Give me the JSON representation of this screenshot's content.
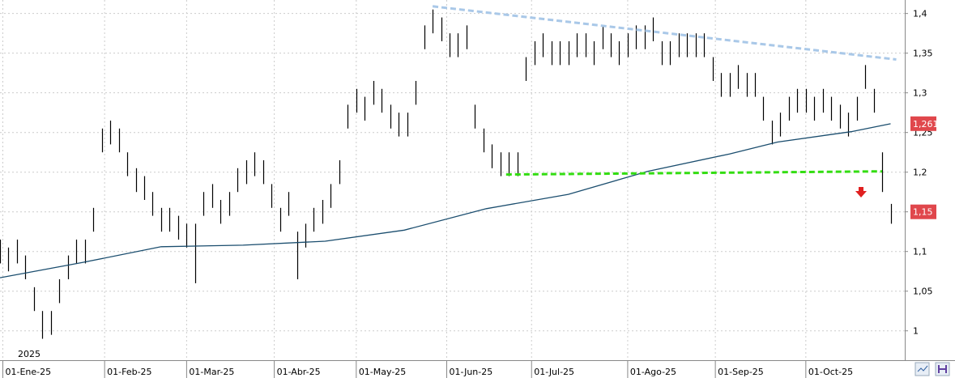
{
  "chart_data": {
    "type": "ohlc",
    "annotation": "2025",
    "bars": {
      "color": "#000000",
      "x": [
        0,
        3,
        6,
        9,
        12,
        15,
        18,
        21,
        24,
        27,
        30,
        33,
        36,
        39,
        42,
        45,
        48,
        51,
        54,
        57,
        60,
        63,
        66,
        69,
        72,
        75,
        78,
        81,
        84,
        87,
        90,
        93,
        96,
        99,
        102,
        105,
        108,
        111,
        114,
        117,
        120,
        123,
        126,
        129,
        132,
        135,
        138,
        141,
        144,
        147,
        150,
        153,
        156,
        159,
        162,
        165,
        168,
        171,
        174,
        177,
        180,
        183,
        186,
        189,
        192,
        195,
        198,
        201,
        204,
        207,
        210,
        213,
        216,
        219,
        222,
        225,
        228,
        231,
        234,
        237,
        240,
        243,
        246,
        249,
        252,
        255,
        258,
        261,
        264,
        267,
        270,
        273,
        276,
        279,
        282,
        285,
        288,
        291,
        294,
        297,
        300,
        303,
        306,
        309,
        312,
        315
      ],
      "high": [
        1.115,
        1.105,
        1.115,
        1.095,
        1.055,
        1.025,
        1.025,
        1.065,
        1.095,
        1.115,
        1.115,
        1.155,
        1.255,
        1.265,
        1.255,
        1.225,
        1.205,
        1.195,
        1.175,
        1.155,
        1.155,
        1.145,
        1.135,
        1.135,
        1.175,
        1.185,
        1.165,
        1.175,
        1.205,
        1.215,
        1.225,
        1.215,
        1.185,
        1.155,
        1.175,
        1.125,
        1.135,
        1.155,
        1.165,
        1.185,
        1.215,
        1.285,
        1.305,
        1.295,
        1.315,
        1.305,
        1.285,
        1.275,
        1.275,
        1.315,
        1.385,
        1.405,
        1.395,
        1.375,
        1.375,
        1.385,
        1.285,
        1.255,
        1.235,
        1.225,
        1.225,
        1.225,
        1.345,
        1.365,
        1.375,
        1.365,
        1.365,
        1.365,
        1.375,
        1.375,
        1.365,
        1.385,
        1.375,
        1.365,
        1.375,
        1.385,
        1.385,
        1.395,
        1.365,
        1.365,
        1.375,
        1.375,
        1.375,
        1.375,
        1.345,
        1.325,
        1.325,
        1.335,
        1.325,
        1.325,
        1.295,
        1.265,
        1.275,
        1.295,
        1.305,
        1.305,
        1.295,
        1.305,
        1.295,
        1.285,
        1.275,
        1.295,
        1.335,
        1.305,
        1.225,
        1.16
      ],
      "low": [
        1.085,
        1.075,
        1.085,
        1.065,
        1.025,
        0.99,
        0.995,
        1.035,
        1.065,
        1.085,
        1.085,
        1.125,
        1.225,
        1.235,
        1.225,
        1.195,
        1.175,
        1.165,
        1.145,
        1.125,
        1.125,
        1.115,
        1.105,
        1.06,
        1.145,
        1.155,
        1.135,
        1.145,
        1.175,
        1.185,
        1.195,
        1.185,
        1.155,
        1.125,
        1.145,
        1.065,
        1.105,
        1.125,
        1.135,
        1.155,
        1.185,
        1.255,
        1.275,
        1.265,
        1.285,
        1.275,
        1.255,
        1.245,
        1.245,
        1.285,
        1.355,
        1.375,
        1.365,
        1.345,
        1.345,
        1.355,
        1.255,
        1.225,
        1.205,
        1.195,
        1.195,
        1.195,
        1.315,
        1.335,
        1.345,
        1.335,
        1.335,
        1.335,
        1.345,
        1.345,
        1.335,
        1.355,
        1.345,
        1.335,
        1.345,
        1.355,
        1.355,
        1.365,
        1.335,
        1.335,
        1.345,
        1.345,
        1.345,
        1.345,
        1.315,
        1.295,
        1.295,
        1.305,
        1.295,
        1.295,
        1.265,
        1.235,
        1.245,
        1.265,
        1.275,
        1.275,
        1.265,
        1.275,
        1.265,
        1.255,
        1.245,
        1.265,
        1.305,
        1.275,
        1.175,
        1.135
      ]
    },
    "ma": {
      "color": "#1a4d6e",
      "x": [
        0,
        29,
        57,
        86,
        115,
        143,
        172,
        201,
        229,
        258,
        275,
        301,
        315
      ],
      "values": [
        1.067,
        1.086,
        1.106,
        1.108,
        1.113,
        1.127,
        1.154,
        1.172,
        1.201,
        1.223,
        1.238,
        1.251,
        1.261
      ]
    },
    "resistance": {
      "color": "#a9c8e8",
      "x": [
        153,
        317
      ],
      "values": [
        1.409,
        1.342
      ]
    },
    "support": {
      "color": "#33dd11",
      "x": [
        179,
        312
      ],
      "values": [
        1.197,
        1.201
      ]
    },
    "price_labels": [
      {
        "value": 1.2611,
        "label": "1,2611",
        "color": "#e0474c"
      },
      {
        "value": 1.15,
        "label": "1,15",
        "color": "#e0474c"
      }
    ],
    "xlim": [
      0,
      320
    ],
    "ylim": [
      0.963,
      1.417
    ],
    "xticks": [
      {
        "value": 1,
        "label": "01-Ene-25"
      },
      {
        "value": 37,
        "label": "01-Feb-25"
      },
      {
        "value": 66,
        "label": "01-Mar-25"
      },
      {
        "value": 97,
        "label": "01-Abr-25"
      },
      {
        "value": 126,
        "label": "01-May-25"
      },
      {
        "value": 158,
        "label": "01-Jun-25"
      },
      {
        "value": 188,
        "label": "01-Jul-25"
      },
      {
        "value": 222,
        "label": "01-Ago-25"
      },
      {
        "value": 253,
        "label": "01-Sep-25"
      },
      {
        "value": 285,
        "label": "01-Oct-25"
      }
    ],
    "yticks": [
      {
        "value": 1,
        "label": "1"
      },
      {
        "value": 1.05,
        "label": "1,05"
      },
      {
        "value": 1.1,
        "label": "1,1"
      },
      {
        "value": 1.15,
        "label": "1,15"
      },
      {
        "value": 1.2,
        "label": "1,2"
      },
      {
        "value": 1.25,
        "label": "1,25"
      },
      {
        "value": 1.3,
        "label": "1,3"
      },
      {
        "value": 1.35,
        "label": "1,35"
      },
      {
        "value": 1.4,
        "label": "1,4"
      }
    ],
    "grid": true
  }
}
